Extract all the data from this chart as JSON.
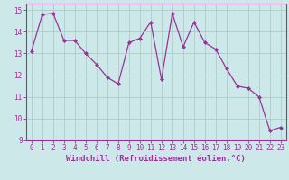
{
  "x": [
    0,
    1,
    2,
    3,
    4,
    5,
    6,
    7,
    8,
    9,
    10,
    11,
    12,
    13,
    14,
    15,
    16,
    17,
    18,
    19,
    20,
    21,
    22,
    23
  ],
  "y": [
    13.1,
    14.8,
    14.85,
    13.6,
    13.6,
    13.0,
    12.5,
    11.9,
    11.6,
    13.5,
    13.7,
    14.45,
    11.8,
    14.85,
    13.3,
    14.45,
    13.5,
    13.2,
    12.3,
    11.5,
    11.4,
    11.0,
    9.45,
    9.6
  ],
  "line_color": "#993399",
  "marker": "D",
  "marker_size": 2.0,
  "bg_color": "#cce8e8",
  "grid_color": "#aacccc",
  "xlabel": "Windchill (Refroidissement éolien,°C)",
  "ylim": [
    9,
    15.3
  ],
  "xlim": [
    -0.5,
    23.5
  ],
  "yticks": [
    9,
    10,
    11,
    12,
    13,
    14,
    15
  ],
  "xticks": [
    0,
    1,
    2,
    3,
    4,
    5,
    6,
    7,
    8,
    9,
    10,
    11,
    12,
    13,
    14,
    15,
    16,
    17,
    18,
    19,
    20,
    21,
    22,
    23
  ],
  "tick_color": "#993399",
  "label_color": "#993399",
  "spine_color": "#993399",
  "tick_fontsize": 5.5,
  "xlabel_fontsize": 6.5
}
